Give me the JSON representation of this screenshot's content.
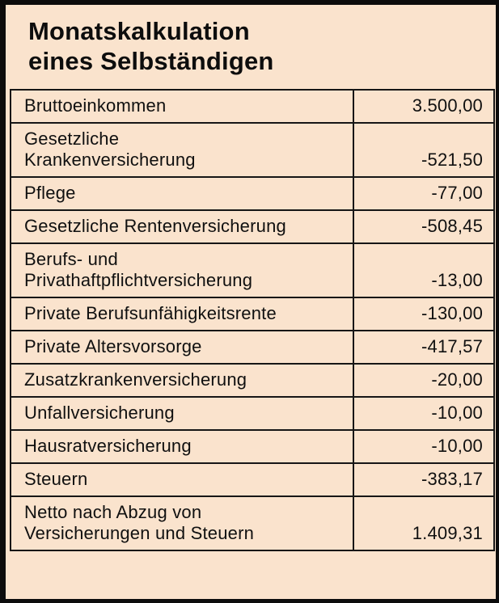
{
  "title": "Monatskalkulation\neines Selbständigen",
  "colors": {
    "background": "#fae3cd",
    "frame_border": "#0c0c0c",
    "table_lines": "#161616",
    "text": "#101010"
  },
  "table": {
    "rows": [
      {
        "label": "Bruttoeinkommen",
        "value": "3.500,00"
      },
      {
        "label": "Gesetzliche\nKrankenversicherung",
        "value": "-521,50"
      },
      {
        "label": "Pflege",
        "value": "-77,00"
      },
      {
        "label": "Gesetzliche Rentenversicherung",
        "value": "-508,45"
      },
      {
        "label": "Berufs- und\nPrivathaftpflichtversicherung",
        "value": "-13,00"
      },
      {
        "label": "Private Berufsunfähigkeitsrente",
        "value": "-130,00"
      },
      {
        "label": "Private Altersvorsorge",
        "value": "-417,57"
      },
      {
        "label": "Zusatzkrankenversicherung",
        "value": "-20,00"
      },
      {
        "label": "Unfallversicherung",
        "value": "-10,00"
      },
      {
        "label": "Hausratversicherung",
        "value": "-10,00"
      },
      {
        "label": "Steuern",
        "value": "-383,17"
      },
      {
        "label": "Netto nach Abzug von\nVersicherungen und Steuern",
        "value": "1.409,31"
      }
    ]
  }
}
